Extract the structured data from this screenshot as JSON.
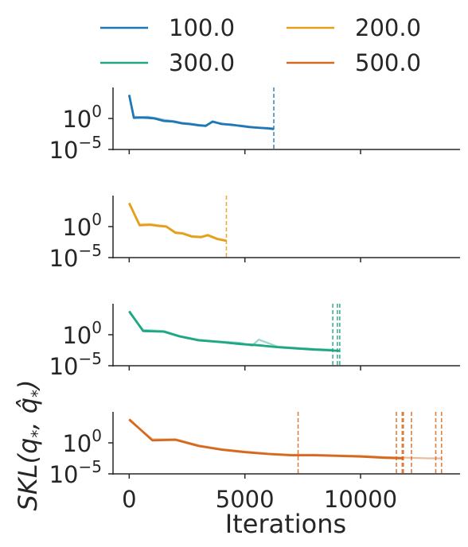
{
  "chart_data": {
    "type": "line",
    "title": "",
    "xlabel": "Iterations",
    "ylabel": "SKL(q*, q̂*)",
    "ylabel_parts": {
      "prefix": "SKL(",
      "q1": "q",
      "sub1": "*",
      "sep": ", ",
      "q2": "q̂",
      "sub2": "*",
      "suffix": ")"
    },
    "xlim": [
      -700,
      14300
    ],
    "x_ticks": [
      0,
      5000,
      10000
    ],
    "x_tick_labels": [
      "0",
      "5000",
      "10000"
    ],
    "y_scale": "log",
    "ylim_exp": [
      -5,
      5
    ],
    "y_ticks": [
      {
        "base": "10",
        "exp": "0",
        "value_exp": 0
      },
      {
        "base": "10",
        "exp": "−5",
        "value_exp": -5
      }
    ],
    "grid": false,
    "legend": {
      "placement": "top",
      "columns": 2
    },
    "series": [
      {
        "name": "100.0",
        "color": "#1f77b4",
        "stop_iterations": [
          6250
        ],
        "runs": [
          {
            "points": [
              [
                0,
                3.8
              ],
              [
                200,
                0.1
              ],
              [
                500,
                0.15
              ],
              [
                800,
                0.1
              ],
              [
                1100,
                0.0
              ],
              [
                1500,
                -0.4
              ],
              [
                1900,
                -0.5
              ],
              [
                2300,
                -0.8
              ],
              [
                2600,
                -0.9
              ],
              [
                3000,
                -1.1
              ],
              [
                3300,
                -1.2
              ],
              [
                3600,
                -0.5
              ],
              [
                4000,
                -0.9
              ],
              [
                4400,
                -1.0
              ],
              [
                4800,
                -1.2
              ],
              [
                5200,
                -1.4
              ],
              [
                5600,
                -1.5
              ],
              [
                6000,
                -1.6
              ],
              [
                6250,
                -1.7
              ]
            ]
          },
          {
            "faint": true,
            "points": [
              [
                0,
                3.6
              ],
              [
                200,
                0.3
              ],
              [
                500,
                0.2
              ],
              [
                800,
                0.3
              ],
              [
                1100,
                0.1
              ],
              [
                1500,
                -0.2
              ],
              [
                1900,
                -0.4
              ],
              [
                2300,
                -0.7
              ],
              [
                2600,
                -0.8
              ],
              [
                3000,
                -1.0
              ],
              [
                3300,
                -1.1
              ],
              [
                3600,
                -0.6
              ],
              [
                4000,
                -0.8
              ],
              [
                4400,
                -1.1
              ],
              [
                4800,
                -1.1
              ],
              [
                5200,
                -1.3
              ],
              [
                5600,
                -1.5
              ],
              [
                6000,
                -1.5
              ],
              [
                6250,
                -1.6
              ]
            ]
          }
        ]
      },
      {
        "name": "200.0",
        "color": "#e69f1b",
        "stop_iterations": [
          4200
        ],
        "runs": [
          {
            "points": [
              [
                0,
                3.8
              ],
              [
                450,
                0.2
              ],
              [
                900,
                0.3
              ],
              [
                1300,
                0.1
              ],
              [
                1600,
                0.0
              ],
              [
                2000,
                -1.0
              ],
              [
                2300,
                -1.1
              ],
              [
                2700,
                -1.6
              ],
              [
                3100,
                -1.7
              ],
              [
                3400,
                -1.4
              ],
              [
                3800,
                -2.0
              ],
              [
                4200,
                -2.3
              ]
            ]
          },
          {
            "faint": true,
            "points": [
              [
                0,
                3.6
              ],
              [
                450,
                0.4
              ],
              [
                900,
                0.4
              ],
              [
                1300,
                0.2
              ],
              [
                1600,
                0.1
              ],
              [
                2000,
                -0.9
              ],
              [
                2300,
                -1.0
              ],
              [
                2700,
                -1.5
              ],
              [
                3100,
                -1.6
              ],
              [
                3400,
                -1.3
              ],
              [
                3800,
                -1.9
              ],
              [
                4200,
                -2.2
              ]
            ]
          }
        ]
      },
      {
        "name": "300.0",
        "color": "#1fa685",
        "stop_iterations": [
          8800,
          9000,
          9100
        ],
        "runs": [
          {
            "points": [
              [
                0,
                3.8
              ],
              [
                600,
                0.6
              ],
              [
                1500,
                0.5
              ],
              [
                2200,
                -0.3
              ],
              [
                3000,
                -0.9
              ],
              [
                4000,
                -1.2
              ],
              [
                4800,
                -1.5
              ],
              [
                5600,
                -1.7
              ],
              [
                6400,
                -2.0
              ],
              [
                7200,
                -2.2
              ],
              [
                8000,
                -2.4
              ],
              [
                8600,
                -2.5
              ],
              [
                9100,
                -2.6
              ]
            ]
          },
          {
            "faint": true,
            "points": [
              [
                0,
                3.6
              ],
              [
                600,
                0.8
              ],
              [
                1500,
                0.6
              ],
              [
                2200,
                -0.2
              ],
              [
                3000,
                -0.8
              ],
              [
                4000,
                -1.1
              ],
              [
                4800,
                -1.3
              ],
              [
                5300,
                -1.8
              ],
              [
                5600,
                -0.8
              ],
              [
                6400,
                -1.9
              ],
              [
                7200,
                -2.1
              ],
              [
                8000,
                -2.3
              ],
              [
                8800,
                -2.4
              ]
            ]
          }
        ]
      },
      {
        "name": "500.0",
        "color": "#d5691f",
        "stop_iterations": [
          7300,
          11550,
          11800,
          11850,
          12200,
          13250,
          13500
        ],
        "runs": [
          {
            "points": [
              [
                0,
                3.8
              ],
              [
                1000,
                0.4
              ],
              [
                2000,
                0.5
              ],
              [
                3000,
                -0.5
              ],
              [
                4000,
                -1.1
              ],
              [
                5000,
                -1.5
              ],
              [
                6000,
                -1.8
              ],
              [
                7000,
                -2.0
              ],
              [
                8000,
                -2.0
              ],
              [
                9000,
                -2.1
              ],
              [
                10000,
                -2.2
              ],
              [
                11000,
                -2.4
              ],
              [
                11850,
                -2.5
              ]
            ]
          },
          {
            "faint": true,
            "points": [
              [
                0,
                3.6
              ],
              [
                1000,
                0.6
              ],
              [
                2000,
                0.6
              ],
              [
                3000,
                -0.4
              ],
              [
                4000,
                -1.0
              ],
              [
                5000,
                -1.4
              ],
              [
                6000,
                -1.7
              ],
              [
                7000,
                -1.9
              ],
              [
                8000,
                -1.9
              ],
              [
                9000,
                -2.0
              ],
              [
                10000,
                -2.1
              ],
              [
                11000,
                -2.3
              ],
              [
                12000,
                -2.4
              ],
              [
                13000,
                -2.5
              ],
              [
                13500,
                -2.5
              ]
            ]
          }
        ]
      }
    ]
  }
}
